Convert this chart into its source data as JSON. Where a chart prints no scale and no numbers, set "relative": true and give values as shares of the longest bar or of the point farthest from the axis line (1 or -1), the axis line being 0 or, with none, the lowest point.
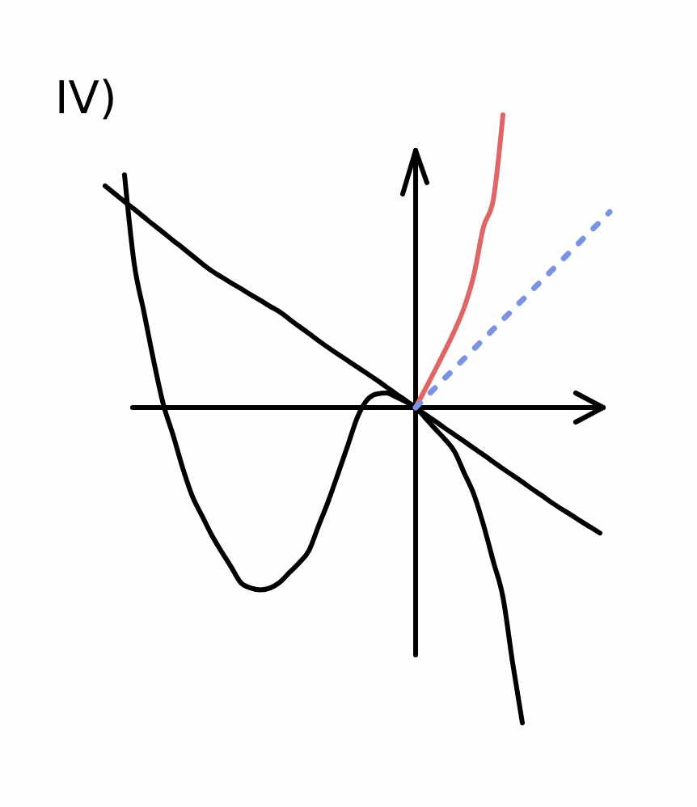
{
  "chart_data": {
    "type": "line",
    "title": "IV)",
    "relative": true,
    "categories": [
      null,
      null,
      null,
      null,
      null,
      null,
      null,
      null,
      null,
      null,
      null,
      null,
      null,
      null,
      null,
      null,
      null,
      null,
      null,
      null,
      null,
      null,
      null,
      null,
      null,
      null,
      null,
      null,
      null,
      null,
      null,
      null,
      null,
      null,
      null,
      null,
      null,
      null,
      null,
      null,
      null,
      null,
      null,
      null,
      null,
      null,
      null,
      null,
      null,
      null,
      null,
      null,
      null,
      null
    ],
    "series": [
      {
        "color": "#000000",
        "values": [
          0.703,
          0.678,
          0.653,
          0.629,
          0.604,
          0.579,
          0.555,
          0.53,
          0.506,
          0.481,
          0.456,
          0.433,
          0.414,
          0.395,
          0.377,
          0.358,
          0.34,
          0.321,
          0.303,
          0.28,
          0.257,
          0.235,
          0.212,
          0.19,
          0.169,
          0.149,
          0.128,
          0.108,
          0.087,
          0.065,
          0.043,
          0.022,
          0,
          -0.022,
          -0.043,
          -0.065,
          -0.086,
          -0.107,
          -0.129,
          -0.15,
          -0.172,
          -0.194,
          -0.215,
          -0.236,
          -0.258,
          -0.279,
          -0.301,
          -0.321,
          -0.34,
          -0.36,
          -0.379,
          -0.398,
          null,
          null
        ]
      },
      {
        "color": "#000000",
        "values": [
          null,
          null,
          0.738,
          0.456,
          0.303,
          0.149,
          0.01,
          -0.087,
          -0.192,
          -0.282,
          -0.344,
          -0.405,
          -0.457,
          -0.506,
          -0.556,
          -0.572,
          -0.578,
          -0.572,
          -0.554,
          -0.523,
          -0.492,
          -0.454,
          -0.375,
          -0.297,
          -0.21,
          -0.121,
          -0.031,
          0.024,
          0.043,
          0.046,
          0.033,
          0.018,
          0,
          -0.033,
          -0.067,
          -0.1,
          -0.139,
          -0.207,
          -0.275,
          -0.373,
          -0.487,
          -0.601,
          -0.81,
          -1,
          null,
          null,
          null,
          null,
          null,
          null,
          null,
          null,
          null,
          null
        ]
      },
      {
        "color": "#e06666",
        "values": [
          null,
          null,
          null,
          null,
          null,
          null,
          null,
          null,
          null,
          null,
          null,
          null,
          null,
          null,
          null,
          null,
          null,
          null,
          null,
          null,
          null,
          null,
          null,
          null,
          null,
          null,
          null,
          null,
          null,
          null,
          null,
          null,
          0,
          0.059,
          0.118,
          0.179,
          0.243,
          0.317,
          0.42,
          0.573,
          0.658,
          0.928,
          null,
          null,
          null,
          null,
          null,
          null,
          null,
          null,
          null,
          null,
          null,
          null
        ]
      },
      {
        "color": "#7b93e0",
        "line_style": "dashed",
        "values": [
          null,
          null,
          null,
          null,
          null,
          null,
          null,
          null,
          null,
          null,
          null,
          null,
          null,
          null,
          null,
          null,
          null,
          null,
          null,
          null,
          null,
          null,
          null,
          null,
          null,
          null,
          null,
          null,
          null,
          null,
          null,
          null,
          0,
          0.031,
          0.062,
          0.093,
          0.124,
          0.155,
          0.186,
          0.217,
          0.248,
          0.279,
          0.31,
          0.341,
          0.372,
          0.403,
          0.434,
          0.465,
          0.496,
          0.527,
          0.558,
          0.589,
          0.62,
          null
        ]
      }
    ]
  }
}
